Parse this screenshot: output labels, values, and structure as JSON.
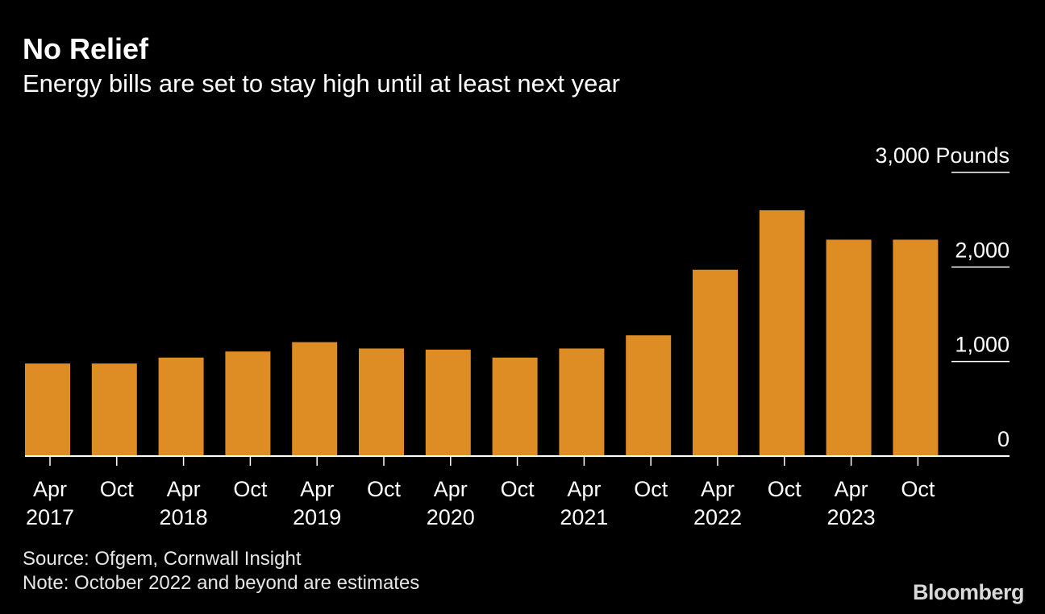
{
  "header": {
    "title": "No Relief",
    "subtitle": "Energy bills are set to stay high until at least next year"
  },
  "footer": {
    "source": "Source: Ofgem, Cornwall Insight",
    "note": "Note: October 2022 and beyond are estimates",
    "brand": "Bloomberg"
  },
  "colors": {
    "bar": "#DE8C24",
    "background": "#000000",
    "text": "#FFFFFF"
  },
  "chart_data": {
    "type": "bar",
    "title": "No Relief",
    "subtitle": "Energy bills are set to stay high until at least next year",
    "ylabel": "Pounds",
    "ylim": [
      0,
      3000
    ],
    "yticks": [
      {
        "value": 0,
        "label": "0"
      },
      {
        "value": 1000,
        "label": "1,000"
      },
      {
        "value": 2000,
        "label": "2,000"
      },
      {
        "value": 3000,
        "label": "3,000 Pounds"
      }
    ],
    "categories": [
      {
        "month": "Apr",
        "year": "2017"
      },
      {
        "month": "Oct",
        "year": ""
      },
      {
        "month": "Apr",
        "year": "2018"
      },
      {
        "month": "Oct",
        "year": ""
      },
      {
        "month": "Apr",
        "year": "2019"
      },
      {
        "month": "Oct",
        "year": ""
      },
      {
        "month": "Apr",
        "year": "2020"
      },
      {
        "month": "Oct",
        "year": ""
      },
      {
        "month": "Apr",
        "year": "2021"
      },
      {
        "month": "Oct",
        "year": ""
      },
      {
        "month": "Apr",
        "year": "2022"
      },
      {
        "month": "Oct",
        "year": ""
      },
      {
        "month": "Apr",
        "year": "2023"
      },
      {
        "month": "Oct",
        "year": ""
      }
    ],
    "values": [
      979,
      979,
      1042,
      1106,
      1205,
      1138,
      1126,
      1042,
      1138,
      1277,
      1971,
      2600,
      2289,
      2289
    ],
    "legend": "none",
    "grid": false
  }
}
